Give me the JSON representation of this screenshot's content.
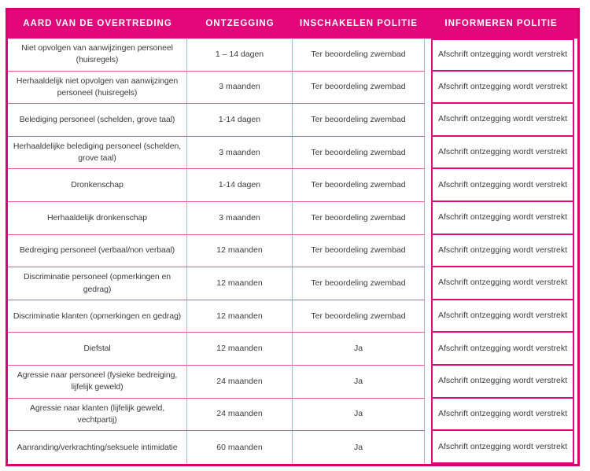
{
  "colors": {
    "header_bg": "#e2077b",
    "outer_border": "#d6046f",
    "grid_line_horizontal": "#e8549c",
    "grid_line_vertical": "#f095c2",
    "highlight_column_border": "#e2077b",
    "header_text": "#ffffff",
    "body_text": "#3c3c3c"
  },
  "table": {
    "headers": [
      "AARD VAN DE OVERTREDING",
      "ONTZEGGING",
      "INSCHAKELEN POLITIE",
      "INFORMEREN POLITIE"
    ],
    "rows": [
      {
        "cells": [
          "Niet opvolgen van aanwijzingen personeel (huisregels)",
          "1 – 14 dagen",
          "Ter beoordeling zwembad",
          "Afschrift ontzegging wordt verstrekt"
        ]
      },
      {
        "cells": [
          "Herhaaldelijk niet opvolgen van aanwijzingen personeel (huisregels)",
          "3 maanden",
          "Ter beoordeling zwembad",
          "Afschrift ontzegging wordt verstrekt"
        ]
      },
      {
        "cells": [
          "Belediging personeel (schelden, grove taal)",
          "1-14 dagen",
          "Ter beoordeling zwembad",
          "Afschrift ontzegging wordt verstrekt"
        ]
      },
      {
        "cells": [
          "Herhaaldelijke belediging personeel (schelden, grove taal)",
          "3 maanden",
          "Ter beoordeling zwembad",
          "Afschrift ontzegging wordt verstrekt"
        ]
      },
      {
        "cells": [
          "Dronkenschap",
          "1-14 dagen",
          "Ter beoordeling zwembad",
          "Afschrift ontzegging wordt verstrekt"
        ]
      },
      {
        "cells": [
          "Herhaaldelijk dronkenschap",
          "3 maanden",
          "Ter beoordeling zwembad",
          "Afschrift ontzegging wordt verstrekt"
        ]
      },
      {
        "cells": [
          "Bedreiging personeel (verbaal/non verbaal)",
          "12 maanden",
          "Ter beoordeling zwembad",
          "Afschrift ontzegging wordt verstrekt"
        ]
      },
      {
        "cells": [
          "Discriminatie personeel (opmerkingen en gedrag)",
          "12 maanden",
          "Ter beoordeling zwembad",
          "Afschrift ontzegging wordt verstrekt"
        ]
      },
      {
        "cells": [
          "Discriminatie klanten (opmerkingen en gedrag)",
          "12 maanden",
          "Ter beoordeling zwembad",
          "Afschrift ontzegging wordt verstrekt"
        ]
      },
      {
        "cells": [
          "Diefstal",
          "12 maanden",
          "Ja",
          "Afschrift ontzegging wordt verstrekt"
        ]
      },
      {
        "cells": [
          "Agressie naar personeel (fysieke bedreiging, lijfelijk geweld)",
          "24 maanden",
          "Ja",
          "Afschrift ontzegging wordt verstrekt"
        ]
      },
      {
        "cells": [
          "Agressie naar klanten (lijfelijk geweld, vechtpartij)",
          "24 maanden",
          "Ja",
          "Afschrift ontzegging wordt verstrekt"
        ]
      },
      {
        "cells": [
          "Aanranding/verkrachting/seksuele intimidatie",
          "60 maanden",
          "Ja",
          "Afschrift ontzegging wordt verstrekt"
        ]
      }
    ]
  }
}
